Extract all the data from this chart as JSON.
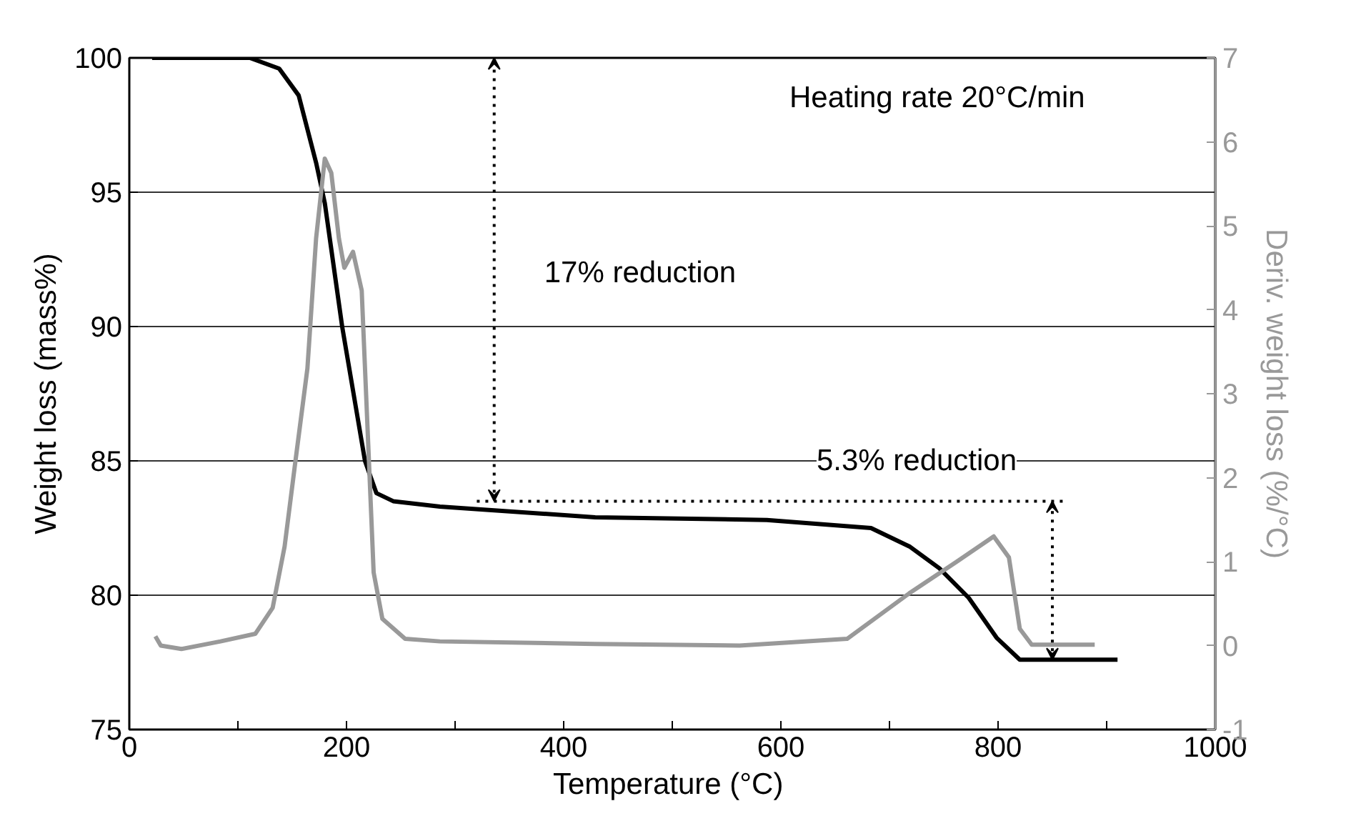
{
  "chart_data": {
    "type": "line",
    "xlabel": "Temperature  (°C)",
    "ylabel": "Weight loss (mass%)",
    "y2label": "Deriv. weight loss (%/°C)",
    "xlim": [
      0,
      1000
    ],
    "ylim": [
      75,
      100
    ],
    "y2lim": [
      -1,
      7
    ],
    "xticks": [
      0,
      {
        "value": 100,
        "label": null
      },
      200,
      {
        "value": 300,
        "label": null
      },
      400,
      {
        "value": 500,
        "label": null
      },
      600,
      {
        "value": 700,
        "label": null
      },
      800,
      {
        "value": 900,
        "label": null
      },
      1000
    ],
    "yticks": [
      75,
      80,
      85,
      90,
      95,
      100
    ],
    "y2ticks": [
      -1,
      0,
      1,
      2,
      3,
      4,
      5,
      6,
      7
    ],
    "grid": "y",
    "series": [
      {
        "color": "#000000",
        "x": [
          21,
          111,
          138,
          156,
          172,
          180,
          196,
          217,
          227.5,
          243,
          286,
          429,
          587,
          683,
          719,
          746,
          773,
          799,
          820,
          910
        ],
        "values": [
          100,
          100,
          99.6,
          98.6,
          96.1,
          94.6,
          90.0,
          85.0,
          83.8,
          83.5,
          83.3,
          82.9,
          82.8,
          82.5,
          81.8,
          81.0,
          79.9,
          78.4,
          77.6,
          77.6
        ]
      },
      {
        "color": "#999999",
        "axis": "y2",
        "x": [
          24,
          29,
          48,
          84,
          116,
          132,
          143,
          153,
          164,
          172,
          180,
          186,
          193,
          198,
          206,
          214,
          220,
          225,
          233,
          254,
          286,
          429,
          562,
          661,
          719,
          762,
          796,
          810,
          820,
          831,
          889
        ],
        "values": [
          0.11,
          0.0,
          -0.04,
          0.05,
          0.14,
          0.45,
          1.18,
          2.2,
          3.3,
          4.85,
          5.8,
          5.63,
          4.85,
          4.5,
          4.69,
          4.23,
          2.4,
          0.87,
          0.32,
          0.08,
          0.05,
          0.02,
          0.0,
          0.08,
          0.63,
          1.0,
          1.3,
          1.05,
          0.2,
          0.01,
          0.01
        ]
      }
    ],
    "ref_lines": [
      {
        "axis": "y",
        "value": 83.5,
        "line_style": "dotted",
        "color": "#000000"
      }
    ],
    "annotations": [
      "Heating rate 20°C/min",
      "17% reduction",
      "5.3% reduction"
    ]
  }
}
